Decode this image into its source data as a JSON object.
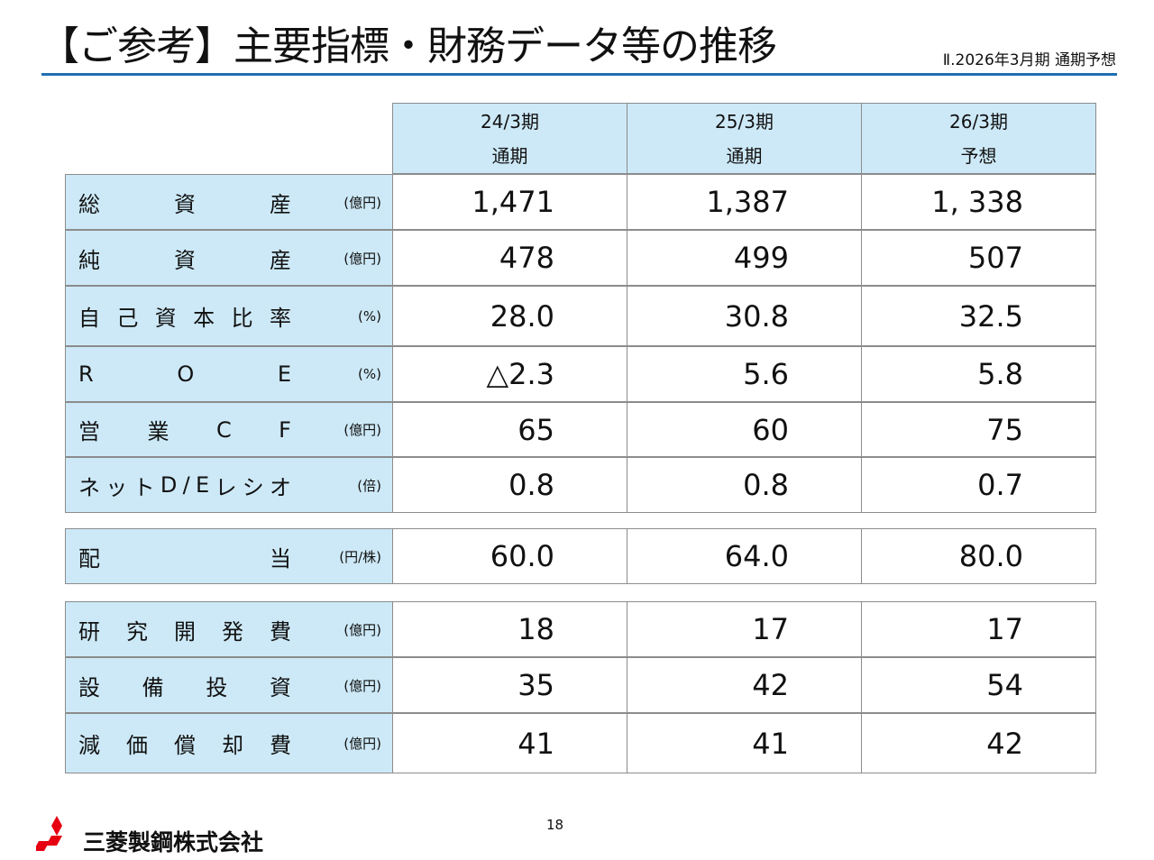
{
  "title": "【ご参考】主要指標・財務データ等の推移",
  "subtitle": "Ⅱ.2026年3月期 通期予想",
  "columns": [
    {
      "period": "24/3期",
      "type": "通期"
    },
    {
      "period": "25/3期",
      "type": "通期"
    },
    {
      "period": "26/3期",
      "type": "予想"
    }
  ],
  "rows": [
    {
      "chars": [
        "総",
        "資",
        "産"
      ],
      "unit": "(億円)",
      "values": [
        "1,471",
        "1,387",
        "1, 338"
      ]
    },
    {
      "chars": [
        "純",
        "資",
        "産"
      ],
      "unit": "(億円)",
      "values": [
        "478",
        "499",
        "507"
      ]
    },
    {
      "chars": [
        "自",
        "己",
        "資",
        "本",
        "比",
        "率"
      ],
      "unit": "(%)",
      "values": [
        "28.0",
        "30.8",
        "32.5"
      ]
    },
    {
      "chars": [
        "R",
        "O",
        "E"
      ],
      "unit": "(%)",
      "values": [
        "△2.3",
        "5.6",
        "5.8"
      ]
    },
    {
      "chars": [
        "営",
        "業",
        "C",
        "F"
      ],
      "unit": "(億円)",
      "values": [
        "65",
        "60",
        "75"
      ]
    },
    {
      "chars": [
        "ネ",
        "ッ",
        "ト",
        "D",
        "/",
        "E",
        "レ",
        "シ",
        "オ"
      ],
      "unit": "(倍)",
      "values": [
        "0.8",
        "0.8",
        "0.7"
      ]
    },
    {
      "chars": [
        "配",
        "当"
      ],
      "unit": "(円/株)",
      "values": [
        "60.0",
        "64.0",
        "80.0"
      ]
    },
    {
      "chars": [
        "研",
        "究",
        "開",
        "発",
        "費"
      ],
      "unit": "(億円)",
      "values": [
        "18",
        "17",
        "17"
      ]
    },
    {
      "chars": [
        "設",
        "備",
        "投",
        "資"
      ],
      "unit": "(億円)",
      "values": [
        "35",
        "42",
        "54"
      ]
    },
    {
      "chars": [
        "減",
        "価",
        "償",
        "却",
        "費"
      ],
      "unit": "(億円)",
      "values": [
        "41",
        "41",
        "42"
      ]
    }
  ],
  "footer": {
    "company": "三菱製鋼株式会社",
    "page_number": "18",
    "logo_icon": "three-diamonds-icon",
    "logo_color": "#e60012"
  },
  "colors": {
    "header_fill": "#cde9f7",
    "title_rule": "#1f6fb3",
    "border": "#8c8c8c"
  }
}
